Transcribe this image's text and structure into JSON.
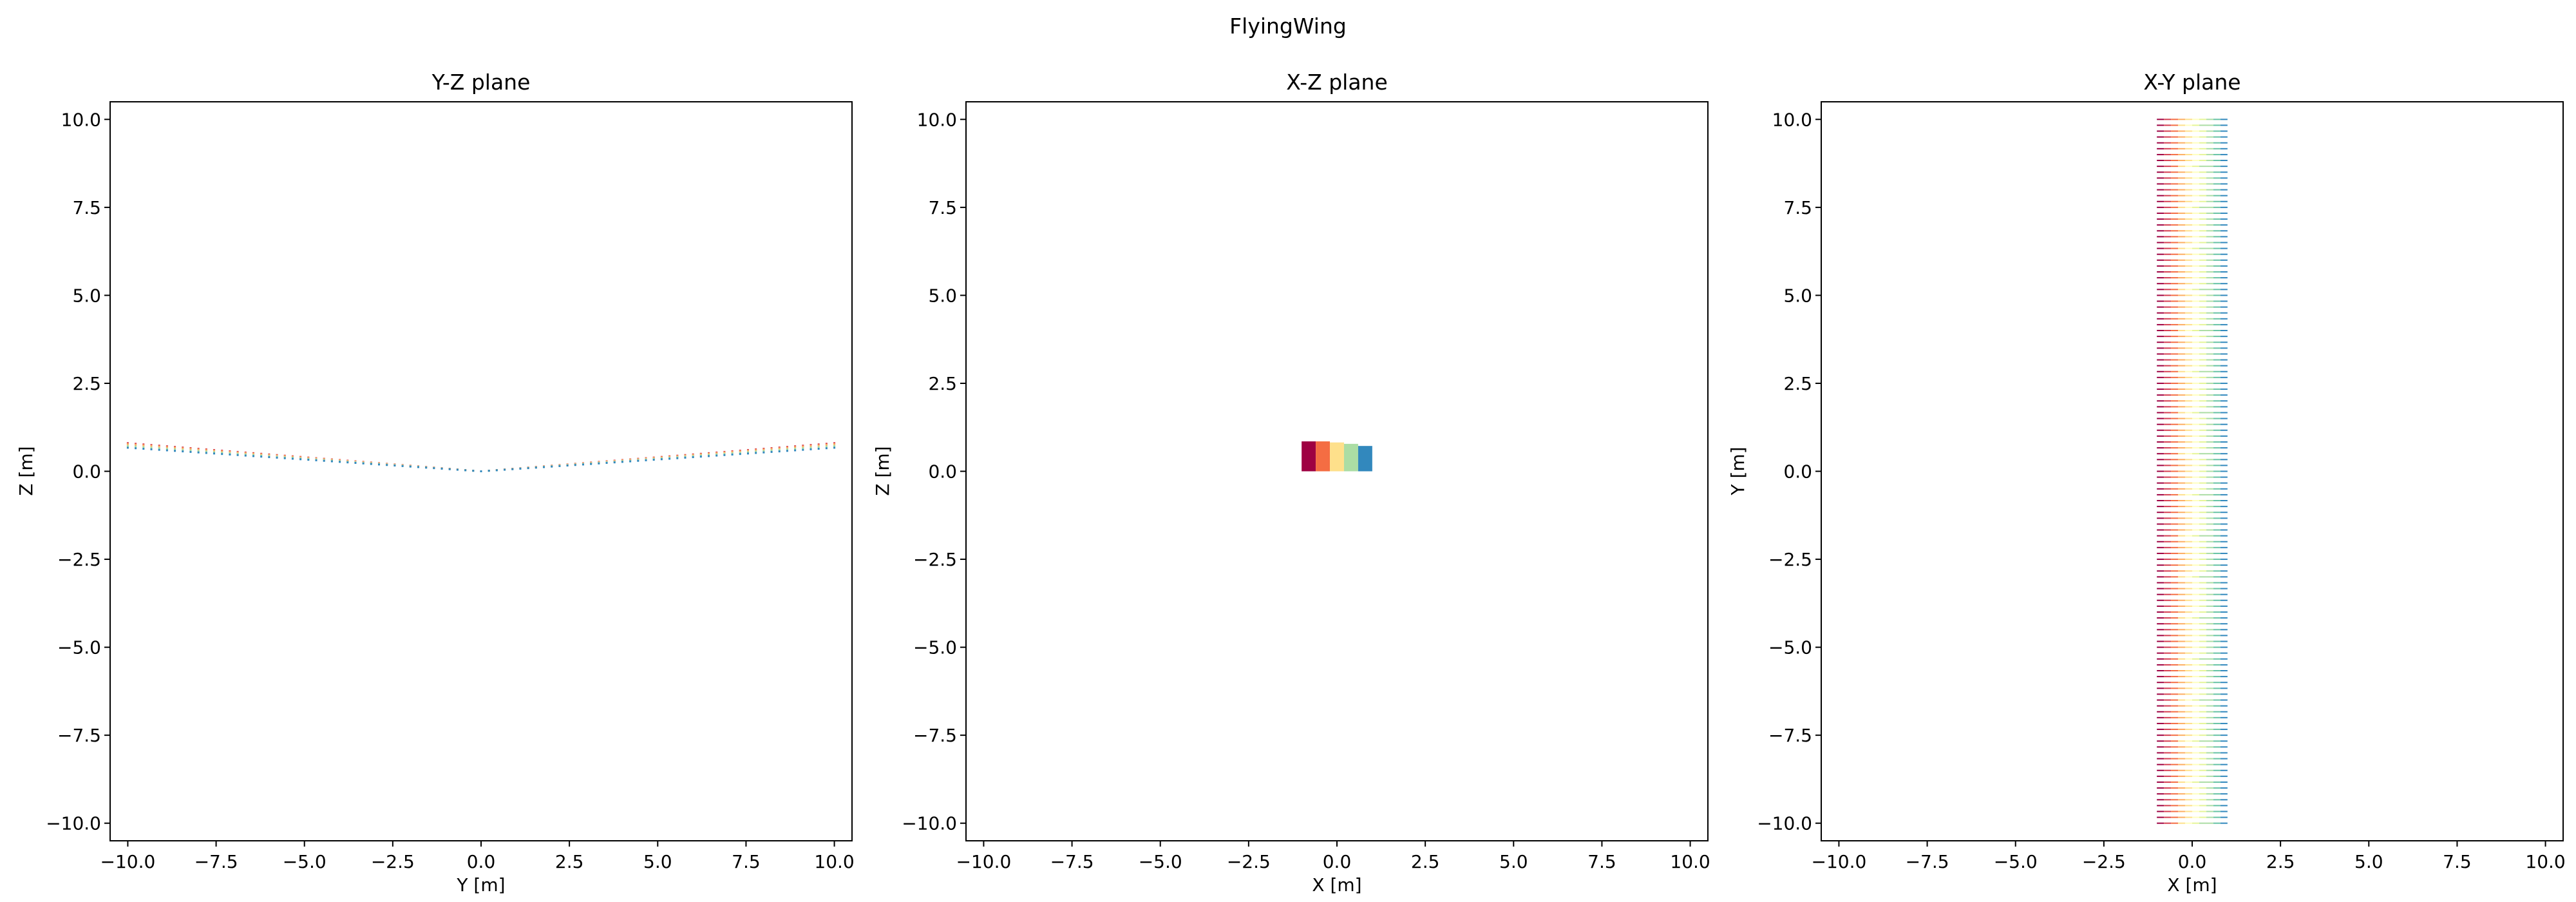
{
  "figure_title": "FlyingWing",
  "chart_data": [
    {
      "type": "scatter",
      "title": "Y-Z plane",
      "xlabel": "Y [m]",
      "ylabel": "Z [m]",
      "xlim": [
        -10.5,
        10.5
      ],
      "ylim": [
        -10.5,
        10.5
      ],
      "xticks": [
        -10.0,
        -7.5,
        -5.0,
        -2.5,
        0.0,
        2.5,
        5.0,
        7.5,
        10.0
      ],
      "yticks": [
        -10.0,
        -7.5,
        -5.0,
        -2.5,
        0.0,
        2.5,
        5.0,
        7.5,
        10.0
      ],
      "tick_labels": [
        "−10.0",
        "−7.5",
        "−5.0",
        "−2.5",
        "0.0",
        "2.5",
        "5.0",
        "7.5",
        "10.0"
      ],
      "grid": false,
      "geometry": {
        "span_tip": 10.0,
        "dihedral_tip_z_upper": 0.8,
        "dihedral_tip_z_lower": 0.65,
        "n_spanwise_points_per_side": 45
      },
      "series": [
        {
          "color": "#d53e4f",
          "points": [
            [
              -10.0,
              0.8
            ],
            [
              -5.0,
              0.4
            ],
            [
              0.0,
              0.0
            ],
            [
              5.0,
              0.4
            ],
            [
              10.0,
              0.8
            ]
          ]
        },
        {
          "color": "#fdae61",
          "points": [
            [
              -10.0,
              0.77
            ],
            [
              -5.0,
              0.38
            ],
            [
              0.0,
              0.0
            ],
            [
              5.0,
              0.38
            ],
            [
              10.0,
              0.77
            ]
          ]
        },
        {
          "color": "#abdda4",
          "points": [
            [
              -10.0,
              0.72
            ],
            [
              -5.0,
              0.35
            ],
            [
              0.0,
              0.0
            ],
            [
              5.0,
              0.35
            ],
            [
              10.0,
              0.72
            ]
          ]
        },
        {
          "color": "#3288bd",
          "points": [
            [
              -10.0,
              0.67
            ],
            [
              -5.0,
              0.32
            ],
            [
              0.0,
              0.0
            ],
            [
              5.0,
              0.32
            ],
            [
              10.0,
              0.67
            ]
          ]
        }
      ]
    },
    {
      "type": "heatmap",
      "title": "X-Z plane",
      "xlabel": "X [m]",
      "ylabel": "Z [m]",
      "xlim": [
        -10.5,
        10.5
      ],
      "ylim": [
        -10.5,
        10.5
      ],
      "xticks": [
        -10.0,
        -7.5,
        -5.0,
        -2.5,
        0.0,
        2.5,
        5.0,
        7.5,
        10.0
      ],
      "yticks": [
        -10.0,
        -7.5,
        -5.0,
        -2.5,
        0.0,
        2.5,
        5.0,
        7.5,
        10.0
      ],
      "tick_labels": [
        "−10.0",
        "−7.5",
        "−5.0",
        "−2.5",
        "0.0",
        "2.5",
        "5.0",
        "7.5",
        "10.0"
      ],
      "grid": false,
      "chordwise_strips": [
        {
          "x": [
            -1.0,
            -0.6
          ],
          "z_bottom": 0.0,
          "z_top": 0.85,
          "color": "#9e0142"
        },
        {
          "x": [
            -0.6,
            -0.2
          ],
          "z_bottom": 0.0,
          "z_top": 0.85,
          "color": "#f46d43"
        },
        {
          "x": [
            -0.2,
            0.2
          ],
          "z_bottom": 0.0,
          "z_top": 0.82,
          "color": "#fee08b"
        },
        {
          "x": [
            0.2,
            0.6
          ],
          "z_bottom": 0.0,
          "z_top": 0.78,
          "color": "#abdda4"
        },
        {
          "x": [
            0.6,
            1.0
          ],
          "z_bottom": 0.0,
          "z_top": 0.72,
          "color": "#3288bd"
        }
      ]
    },
    {
      "type": "scatter",
      "title": "X-Y plane",
      "xlabel": "X [m]",
      "ylabel": "Y [m]",
      "xlim": [
        -10.5,
        10.5
      ],
      "ylim": [
        -10.5,
        10.5
      ],
      "xticks": [
        -10.0,
        -7.5,
        -5.0,
        -2.5,
        0.0,
        2.5,
        5.0,
        7.5,
        10.0
      ],
      "yticks": [
        -10.0,
        -7.5,
        -5.0,
        -2.5,
        0.0,
        2.5,
        5.0,
        7.5,
        10.0
      ],
      "tick_labels": [
        "−10.0",
        "−7.5",
        "−5.0",
        "−2.5",
        "0.0",
        "2.5",
        "5.0",
        "7.5",
        "10.0"
      ],
      "grid": false,
      "planform": {
        "x_min": -1.0,
        "x_max": 1.0,
        "y_min": -10.0,
        "y_max": 10.0,
        "n_spanwise_rows": 120
      },
      "colormap": [
        "#9e0142",
        "#d53e4f",
        "#f46d43",
        "#fdae61",
        "#fee08b",
        "#ffffbf",
        "#e6f598",
        "#abdda4",
        "#66c2a5",
        "#3288bd"
      ]
    }
  ]
}
